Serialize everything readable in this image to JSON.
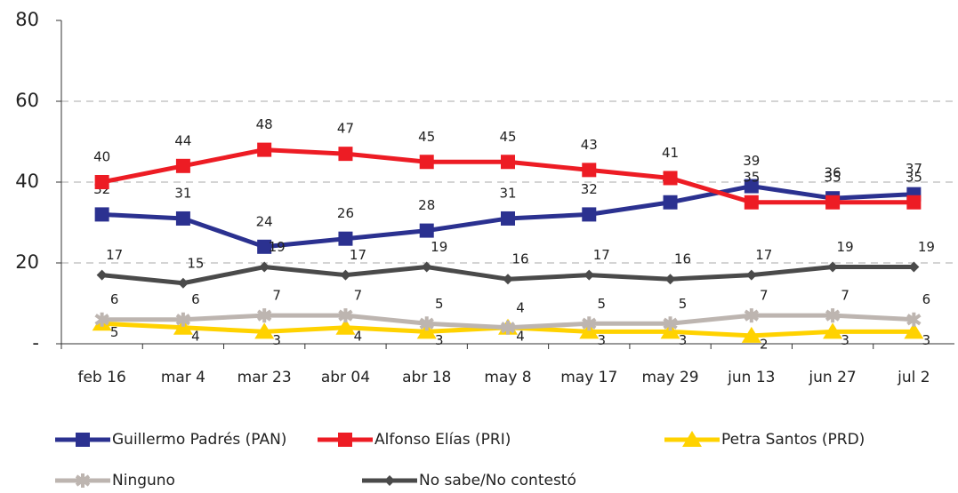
{
  "chart_data": {
    "type": "line",
    "categories": [
      "feb 16",
      "mar 4",
      "mar 23",
      "abr 04",
      "abr 18",
      "may 8",
      "may 17",
      "may 29",
      "jun 13",
      "jun 27",
      "jul 2"
    ],
    "series": [
      {
        "name": "Guillermo Padrés (PAN)",
        "color": "#2b3190",
        "marker": "square",
        "values": [
          32,
          31,
          24,
          26,
          28,
          31,
          32,
          35,
          39,
          36,
          37
        ]
      },
      {
        "name": "Alfonso Elías (PRI)",
        "color": "#ed1c24",
        "marker": "square",
        "values": [
          40,
          44,
          48,
          47,
          45,
          45,
          43,
          41,
          35,
          35,
          35
        ]
      },
      {
        "name": "Petra Santos (PRD)",
        "color": "#ffd200",
        "marker": "triangle",
        "values": [
          5,
          4,
          3,
          4,
          3,
          4,
          3,
          3,
          2,
          3,
          3
        ]
      },
      {
        "name": "Ninguno",
        "color": "#bdb5b0",
        "marker": "star",
        "values": [
          6,
          6,
          7,
          7,
          5,
          4,
          5,
          5,
          7,
          7,
          6
        ]
      },
      {
        "name": "No sabe/No contestó",
        "color": "#4a4a4a",
        "marker": "diamond",
        "values": [
          17,
          15,
          19,
          17,
          19,
          16,
          17,
          16,
          17,
          19,
          19
        ]
      }
    ],
    "ylim": [
      0,
      80
    ],
    "yticks": [
      {
        "value": 0,
        "label": "-"
      },
      20,
      40,
      60,
      80
    ],
    "grid": true
  }
}
